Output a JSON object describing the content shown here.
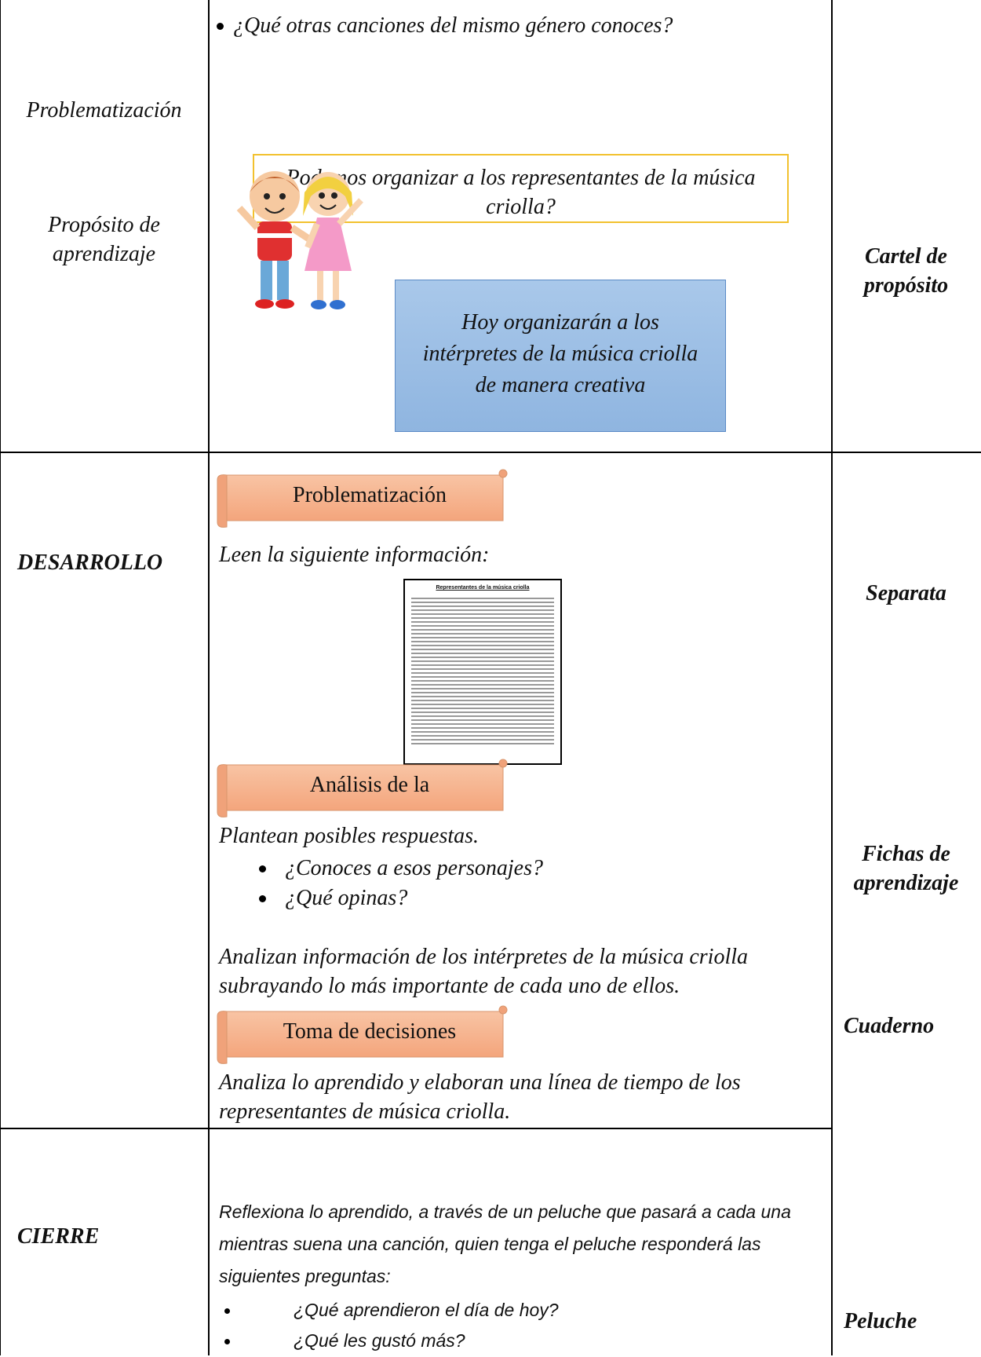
{
  "table": {
    "rows": [
      {
        "stage": [
          "Problematización",
          "Propósito de aprendizaje"
        ],
        "content": {
          "bullet": "¿Qué otras canciones del mismo género conoces?",
          "question_box": "Podemos organizar a los representantes de la música criolla?",
          "purpose_box": "Hoy organizarán a los intérpretes de la música criolla de manera creativa"
        },
        "resources": [
          "Cartel de propósito"
        ]
      },
      {
        "stage": [
          "DESARROLLO"
        ],
        "content": {
          "banners": [
            "Problematización",
            "Análisis de la",
            "Toma de decisiones"
          ],
          "intro": "Leen la siguiente información:",
          "handout_title": "Representantes de la música criolla",
          "prompt": "Plantean posibles respuestas.",
          "bullets": [
            "¿Conoces a esos personajes?",
            "¿Qué opinas?"
          ],
          "analysis": "Analizan información de los intérpretes de la música criolla subrayando lo más importante de cada uno de ellos.",
          "decision": "Analiza lo aprendido y elaboran una línea de tiempo de los representantes de música criolla."
        },
        "resources": [
          "Separata",
          "Fichas de aprendizaje",
          "Cuaderno"
        ]
      },
      {
        "stage": [
          "CIERRE"
        ],
        "content": {
          "text": "Reflexiona lo aprendido, a través de un peluche que pasará a cada una mientras suena una canción, quien tenga el peluche responderá las siguientes preguntas:",
          "bullets": [
            "¿Qué aprendieron el día de hoy?",
            "¿Qué les gustó más?"
          ]
        },
        "resources": [
          "Peluche"
        ]
      }
    ]
  }
}
